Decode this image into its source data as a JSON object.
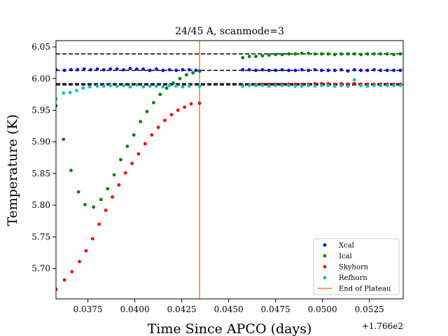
{
  "chart_data": {
    "type": "scatter",
    "title": "24/45 A, scanmode=3",
    "xlabel": "Time Since APCO (days)",
    "ylabel": "Temperature (K)",
    "x_offset_label": "+1.766e2",
    "x_offset": 176.6,
    "xlim": [
      176.6358,
      176.6543
    ],
    "ylim": [
      5.652,
      6.06
    ],
    "xticks": [
      0.0375,
      0.04,
      0.0425,
      0.045,
      0.0475,
      0.05,
      0.0525
    ],
    "xtick_labels": [
      "0.0375",
      "0.0400",
      "0.0425",
      "0.0450",
      "0.0475",
      "0.0500",
      "0.0525"
    ],
    "yticks": [
      5.7,
      5.75,
      5.8,
      5.85,
      5.9,
      5.95,
      6.0,
      6.05
    ],
    "ytick_labels": [
      "5.70",
      "5.75",
      "5.80",
      "5.85",
      "5.90",
      "5.95",
      "6.00",
      "6.05"
    ],
    "grid": false,
    "legend_position": "lower-right",
    "hlines": [
      {
        "y": 6.039,
        "style": "dashed",
        "color": "#000000"
      },
      {
        "y": 6.013,
        "style": "dashed",
        "color": "#000000"
      },
      {
        "y": 5.99,
        "style": "dashed",
        "color": "#000000"
      },
      {
        "y": 5.992,
        "style": "dashed",
        "color": "#000000"
      }
    ],
    "vline": {
      "x": 0.04345,
      "name": "End of Plateau",
      "color": "#ff7f0e"
    },
    "series": [
      {
        "name": "Xcal",
        "color": "#0000ff",
        "x": [
          0.0358,
          0.03625,
          0.0366,
          0.03695,
          0.0373,
          0.03765,
          0.038,
          0.03835,
          0.0387,
          0.03905,
          0.0394,
          0.03975,
          0.0401,
          0.04045,
          0.0408,
          0.04115,
          0.0415,
          0.04185,
          0.0422,
          0.04255,
          0.0429,
          0.04325,
          0.04345,
          0.04575,
          0.0461,
          0.04645,
          0.0468,
          0.04715,
          0.0475,
          0.04785,
          0.0482,
          0.04855,
          0.0489,
          0.04925,
          0.0496,
          0.04995,
          0.0503,
          0.05065,
          0.051,
          0.05135,
          0.0517,
          0.05205,
          0.0524,
          0.05275,
          0.0531,
          0.05345,
          0.0538,
          0.05415
        ],
        "y": [
          6.014,
          6.013,
          6.014,
          6.014,
          6.015,
          6.014,
          6.015,
          6.014,
          6.015,
          6.015,
          6.014,
          6.016,
          6.015,
          6.015,
          6.013,
          6.015,
          6.013,
          6.014,
          6.013,
          6.014,
          6.014,
          6.013,
          6.012,
          6.014,
          6.014,
          6.013,
          6.014,
          6.013,
          6.013,
          6.014,
          6.013,
          6.013,
          6.014,
          6.013,
          6.014,
          6.013,
          6.013,
          6.013,
          6.014,
          6.012,
          6.014,
          6.013,
          6.013,
          6.014,
          6.013,
          6.013,
          6.013,
          6.013
        ]
      },
      {
        "name": "Ical",
        "color": "#008000",
        "x": [
          0.0358,
          0.0362,
          0.0366,
          0.037,
          0.03735,
          0.0378,
          0.0382,
          0.03855,
          0.0389,
          0.03925,
          0.0396,
          0.03995,
          0.0403,
          0.04065,
          0.041,
          0.04135,
          0.0417,
          0.04205,
          0.0424,
          0.04275,
          0.0431,
          0.04345,
          0.04575,
          0.0461,
          0.04645,
          0.0468,
          0.04715,
          0.0475,
          0.04785,
          0.0482,
          0.04855,
          0.0489,
          0.04925,
          0.0496,
          0.04995,
          0.0503,
          0.05065,
          0.051,
          0.05135,
          0.0517,
          0.05205,
          0.0524,
          0.05275,
          0.0531,
          0.05345,
          0.0538,
          0.05415
        ],
        "y": [
          5.957,
          5.904,
          5.855,
          5.821,
          5.801,
          5.797,
          5.809,
          5.826,
          5.848,
          5.872,
          5.893,
          5.911,
          5.932,
          5.948,
          5.962,
          5.975,
          5.985,
          5.993,
          6.0,
          6.006,
          6.009,
          6.012,
          6.033,
          6.035,
          6.035,
          6.036,
          6.037,
          6.038,
          6.038,
          6.039,
          6.039,
          6.04,
          6.04,
          6.039,
          6.039,
          6.039,
          6.038,
          6.039,
          6.039,
          6.039,
          6.038,
          6.039,
          6.039,
          6.039,
          6.039,
          6.038,
          6.039
        ]
      },
      {
        "name": "Skyhorn",
        "color": "#ff0000",
        "x": [
          0.0358,
          0.03625,
          0.03665,
          0.03705,
          0.0374,
          0.03775,
          0.0381,
          0.03845,
          0.0388,
          0.03915,
          0.0395,
          0.03985,
          0.0402,
          0.04055,
          0.0409,
          0.04125,
          0.0416,
          0.04195,
          0.0423,
          0.04265,
          0.043,
          0.04345,
          0.04575,
          0.0461,
          0.04645,
          0.0468,
          0.04715,
          0.0475,
          0.04785,
          0.0482,
          0.04855,
          0.0489,
          0.04925,
          0.0496,
          0.04995,
          0.0503,
          0.05065,
          0.051,
          0.05135,
          0.0517,
          0.05205,
          0.0524,
          0.05275,
          0.0531,
          0.05345,
          0.0538,
          0.05415
        ],
        "y": [
          5.667,
          5.682,
          5.695,
          5.711,
          5.728,
          5.747,
          5.77,
          5.792,
          5.813,
          5.832,
          5.851,
          5.866,
          5.881,
          5.897,
          5.911,
          5.923,
          5.934,
          5.943,
          5.95,
          5.955,
          5.96,
          5.961,
          5.989,
          5.99,
          5.99,
          5.991,
          5.991,
          5.991,
          5.991,
          5.991,
          5.991,
          5.991,
          5.991,
          5.992,
          5.992,
          5.992,
          5.991,
          5.992,
          5.991,
          5.992,
          5.991,
          5.991,
          5.991,
          5.991,
          5.991,
          5.991,
          5.991
        ]
      },
      {
        "name": "Refhorn",
        "color": "#00bfbf",
        "x": [
          0.0358,
          0.0362,
          0.03655,
          0.0369,
          0.03725,
          0.0376,
          0.038,
          0.03835,
          0.0387,
          0.03905,
          0.0394,
          0.03975,
          0.0401,
          0.04045,
          0.0408,
          0.04115,
          0.0415,
          0.04185,
          0.0422,
          0.04255,
          0.0429,
          0.04345,
          0.04575,
          0.0461,
          0.04645,
          0.0468,
          0.04715,
          0.0475,
          0.04785,
          0.0482,
          0.04855,
          0.0489,
          0.04925,
          0.0496,
          0.04995,
          0.0503,
          0.05065,
          0.051,
          0.05135,
          0.0517,
          0.05205,
          0.0524,
          0.05275,
          0.0531,
          0.05345,
          0.0538,
          0.05415
        ],
        "y": [
          5.968,
          5.977,
          5.978,
          5.981,
          5.985,
          5.987,
          5.988,
          5.988,
          5.989,
          5.988,
          5.989,
          5.987,
          5.99,
          5.987,
          5.988,
          5.988,
          5.987,
          5.989,
          5.988,
          5.987,
          5.988,
          5.988,
          5.988,
          5.989,
          5.989,
          5.989,
          5.988,
          5.989,
          5.989,
          5.989,
          5.988,
          5.988,
          5.989,
          5.988,
          5.989,
          5.989,
          5.988,
          5.989,
          5.988,
          5.998,
          5.989,
          5.988,
          5.989,
          5.989,
          5.989,
          5.989,
          5.989
        ]
      }
    ]
  }
}
